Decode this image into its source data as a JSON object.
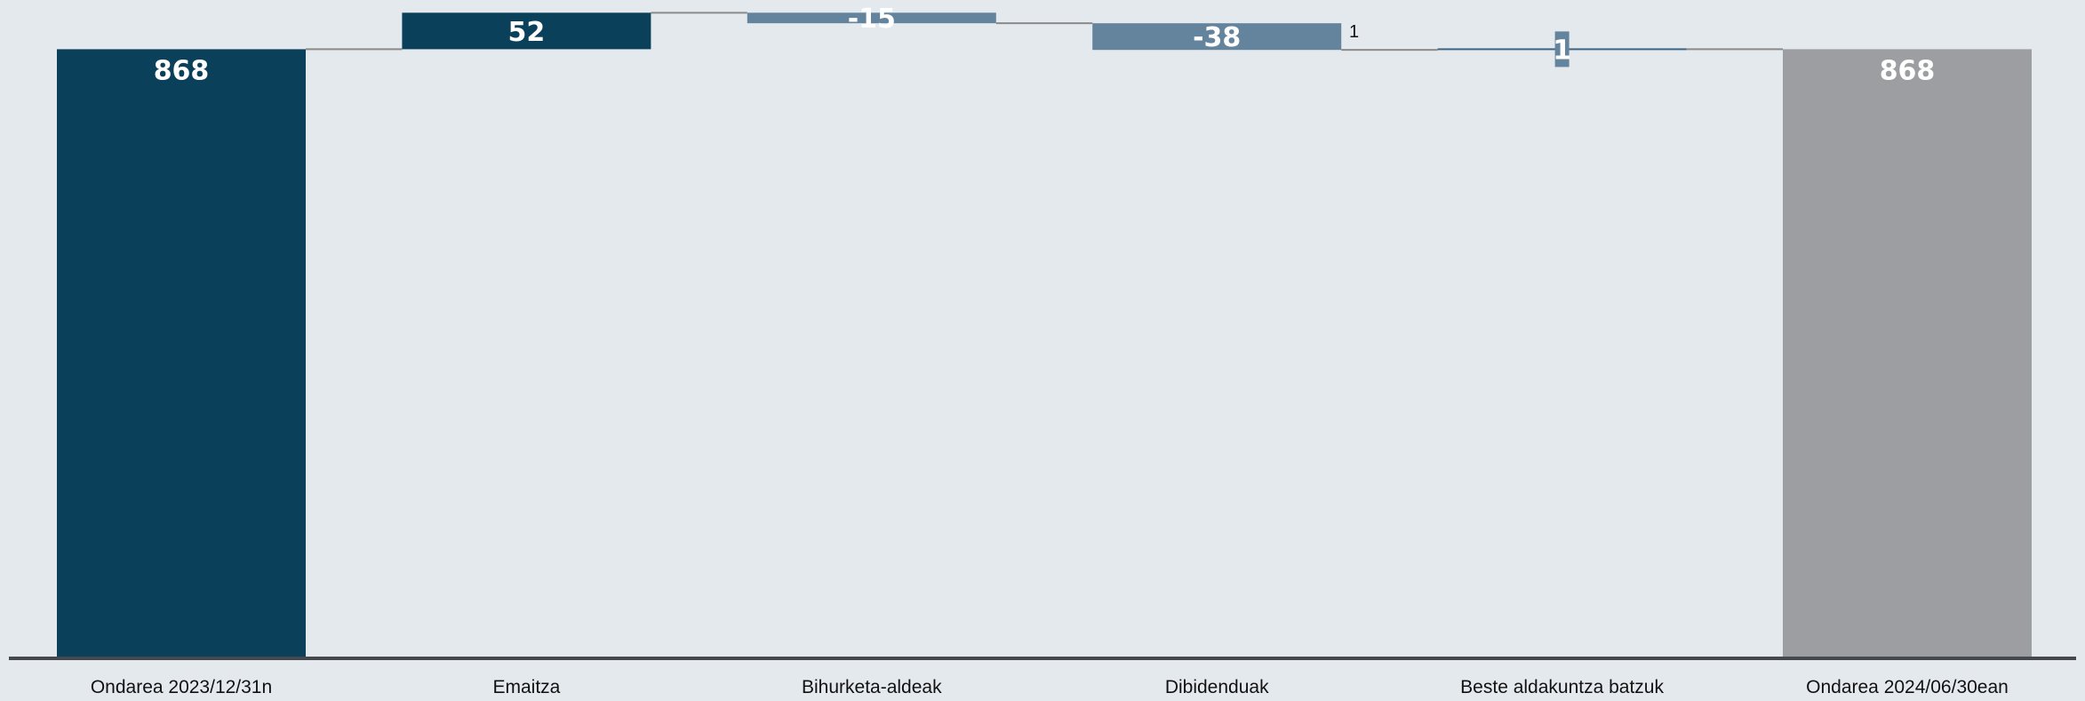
{
  "chart_data": {
    "type": "waterfall",
    "title": "",
    "xlabel": "",
    "ylabel": "",
    "ylim": [
      0,
      928
    ],
    "grid": false,
    "legend": "none",
    "footnote_marker": "1",
    "categories": [
      "Ondarea 2023/12/31n",
      "Emaitza",
      "Bihurketa-aldeak",
      "Dibidenduak",
      "Beste aldakuntza batzuk",
      "Ondarea 2024/06/30ean"
    ],
    "bars": [
      {
        "category": "Ondarea 2023/12/31n",
        "kind": "total",
        "value": 868,
        "label": "868"
      },
      {
        "category": "Emaitza",
        "kind": "increase",
        "value": 52,
        "label": "52"
      },
      {
        "category": "Bihurketa-aldeak",
        "kind": "decrease",
        "value": -15,
        "label": "-15"
      },
      {
        "category": "Dibidenduak",
        "kind": "decrease",
        "value": -38,
        "label": "-38"
      },
      {
        "category": "Beste aldakuntza batzuk",
        "kind": "increase",
        "value": 1,
        "label": "1"
      },
      {
        "category": "Ondarea 2024/06/30ean",
        "kind": "total",
        "value": 868,
        "label": "868"
      }
    ],
    "colors": {
      "total_start": "#0a4059",
      "increase": "#0a4059",
      "decrease": "#64849e",
      "small_change": "#64849e",
      "total_end": "#9c9ea2",
      "connector": "#8a8a8a",
      "baseline": "#45484c",
      "background": "#e4e9ee"
    }
  }
}
